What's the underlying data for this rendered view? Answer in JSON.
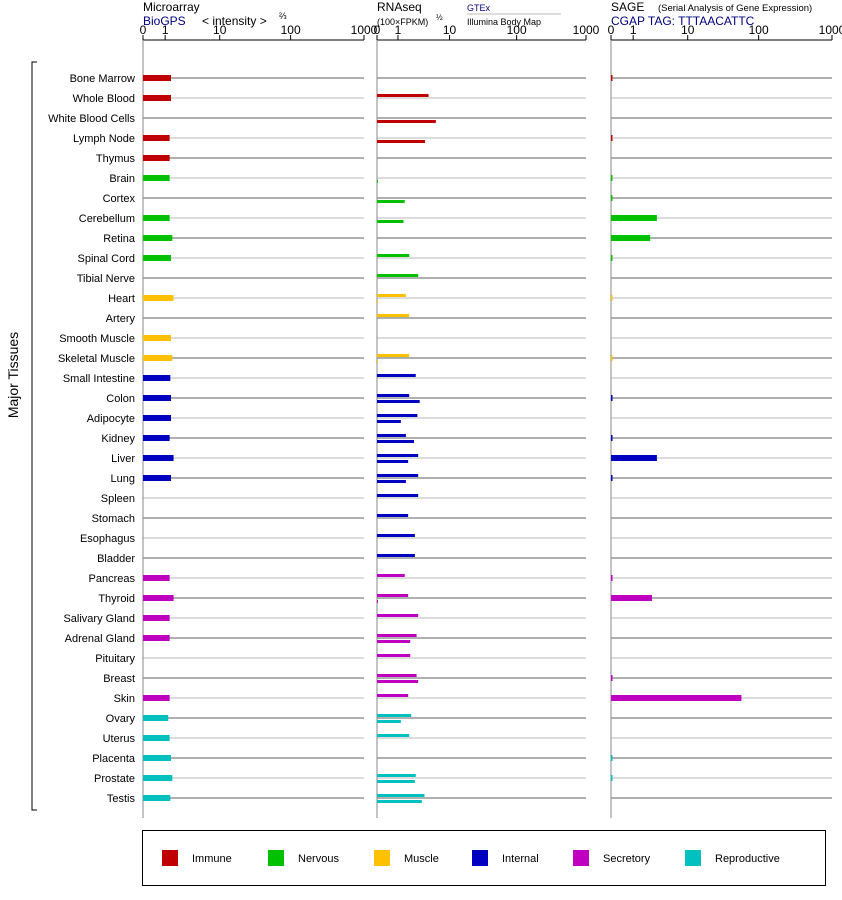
{
  "header": {
    "micro_title": "Microarray",
    "micro_source": "BioGPS",
    "micro_unit_prefix": "< intensity >",
    "micro_unit_exp": "⅔",
    "rna_title": "RNAseq",
    "rna_unit": "(100×FPKM)",
    "rna_unit_exp": "½",
    "rna_src1": "GTEx",
    "rna_src2": "Illumina Body Map",
    "sage_title": "SAGE",
    "sage_subtitle": "(Serial Analysis of Gene Expression)",
    "sage_tag": "CGAP TAG: TTTAACATTC"
  },
  "axis_ticks": [
    "0",
    "1",
    "10",
    "100",
    "1000"
  ],
  "ylabel": "Major Tissues",
  "colors": {
    "Immune": "#c00000",
    "Nervous": "#00c000",
    "Muscle": "#ffc000",
    "Internal": "#0000c0",
    "Secretory": "#c000c0",
    "Reproductive": "#00c0c0"
  },
  "legend": [
    "Immune",
    "Nervous",
    "Muscle",
    "Internal",
    "Secretory",
    "Reproductive"
  ],
  "chart_data": {
    "type": "bar",
    "scale": "log (value + 1)",
    "xlim": [
      0,
      1000
    ],
    "categories": [
      "Bone Marrow",
      "Whole Blood",
      "White Blood Cells",
      "Lymph Node",
      "Thymus",
      "Brain",
      "Cortex",
      "Cerebellum",
      "Retina",
      "Spinal Cord",
      "Tibial Nerve",
      "Heart",
      "Artery",
      "Smooth Muscle",
      "Skeletal Muscle",
      "Small Intestine",
      "Colon",
      "Adipocyte",
      "Kidney",
      "Liver",
      "Lung",
      "Spleen",
      "Stomach",
      "Esophagus",
      "Bladder",
      "Pancreas",
      "Thyroid",
      "Salivary Gland",
      "Adrenal Gland",
      "Pituitary",
      "Breast",
      "Skin",
      "Ovary",
      "Uterus",
      "Placenta",
      "Prostate",
      "Testis"
    ],
    "systems": [
      "Immune",
      "Immune",
      "Immune",
      "Immune",
      "Immune",
      "Nervous",
      "Nervous",
      "Nervous",
      "Nervous",
      "Nervous",
      "Nervous",
      "Muscle",
      "Muscle",
      "Muscle",
      "Muscle",
      "Internal",
      "Internal",
      "Internal",
      "Internal",
      "Internal",
      "Internal",
      "Internal",
      "Internal",
      "Internal",
      "Internal",
      "Secretory",
      "Secretory",
      "Secretory",
      "Secretory",
      "Secretory",
      "Secretory",
      "Secretory",
      "Reproductive",
      "Reproductive",
      "Reproductive",
      "Reproductive",
      "Reproductive"
    ],
    "microarray": [
      1.4,
      1.4,
      null,
      1.3,
      1.3,
      1.3,
      null,
      1.3,
      1.5,
      1.4,
      null,
      1.6,
      null,
      1.4,
      1.5,
      1.35,
      1.4,
      1.4,
      1.3,
      1.6,
      1.4,
      null,
      null,
      null,
      null,
      1.3,
      1.6,
      1.3,
      1.3,
      null,
      null,
      1.3,
      1.2,
      1.3,
      1.4,
      1.5,
      1.35
    ],
    "rnaseq_gtex": [
      null,
      4.5,
      null,
      null,
      null,
      null,
      null,
      null,
      null,
      1.9,
      2.9,
      1.6,
      1.9,
      null,
      1.9,
      2.6,
      1.9,
      2.8,
      1.6,
      2.9,
      2.9,
      2.9,
      1.8,
      2.5,
      2.5,
      1.5,
      1.8,
      2.9,
      2.7,
      2.0,
      2.7,
      1.8,
      2.1,
      1.9,
      null,
      2.6,
      3.8
    ],
    "rnaseq_ibm": [
      null,
      null,
      6.0,
      3.9,
      null,
      0.02,
      1.5,
      1.4,
      null,
      null,
      null,
      0.02,
      null,
      null,
      0.02,
      null,
      3.1,
      1.2,
      2.4,
      1.8,
      1.6,
      null,
      null,
      null,
      null,
      null,
      0.02,
      null,
      2.0,
      null,
      2.9,
      null,
      1.2,
      null,
      null,
      2.5,
      3.4
    ],
    "sage": [
      0.02,
      null,
      null,
      0.02,
      null,
      0.02,
      0.02,
      3.2,
      2.4,
      0.02,
      null,
      0.01,
      null,
      null,
      0.01,
      null,
      0.02,
      null,
      0.02,
      3.2,
      0.02,
      null,
      null,
      null,
      null,
      0.02,
      2.6,
      null,
      null,
      null,
      0.02,
      58,
      null,
      null,
      0.02,
      0.02,
      null
    ]
  }
}
